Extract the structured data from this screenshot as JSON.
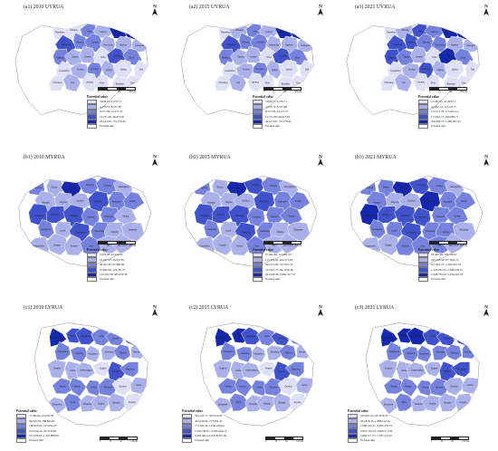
{
  "colors": {
    "class1": "#dde0f6",
    "class2": "#a9b0ea",
    "class3": "#7582dd",
    "class4": "#3f52cc",
    "class5": "#1427ad",
    "outside": "#ffffff",
    "border": "#8c8c8c"
  },
  "legend_title": "Potential value",
  "unrated_label": "Unrated unit",
  "north_label": "N",
  "scale_labels_a": [
    "0",
    "75",
    "150",
    "300 km"
  ],
  "scale_labels_b": [
    "0",
    "50",
    "100",
    "200 km"
  ],
  "scale_labels_c": [
    "0",
    "30",
    "60",
    "120 km"
  ],
  "panels": [
    {
      "id": "a1",
      "title": "(a1) 2010 UYRUA",
      "row": 0,
      "col": 0,
      "scale": "a",
      "legend": [
        "3,006.71–4,276.71",
        "4,276.76–8,557.89",
        "8,557.90–12,271.07",
        "12,271.08–40,613.05",
        "40,613.06–131,279.45"
      ]
    },
    {
      "id": "a2",
      "title": "(a2) 2015 UYRUA",
      "row": 0,
      "col": 1,
      "scale": "a",
      "legend": [
        "3,006.71–4,276.71",
        "4,276.76–8,557.89",
        "8,557.90–12,271.07",
        "12,271.08–40,613.05",
        "40,613.06–131,279.45"
      ]
    },
    {
      "id": "a3",
      "title": "(a3) 2021 UYRUA",
      "row": 0,
      "col": 2,
      "scale": "a",
      "legend": [
        "14,285.25–41,662.13",
        "41,662.14–113,511.77",
        "113,511.78–173,901.14",
        "173,901.15–266,986.71",
        "266,986.72–1,486,863.32"
      ]
    },
    {
      "id": "b1",
      "title": "(b1) 2010 MYRUA",
      "row": 1,
      "col": 0,
      "scale": "b",
      "legend": [
        "5,003.48–16,612.00",
        "16,637.67–36,957.81",
        "36,957.82–67,896.08",
        "67,896.09–124,781.57",
        "124,781.58–385,659.38"
      ]
    },
    {
      "id": "b2",
      "title": "(b2) 2015 MYRUA",
      "row": 1,
      "col": 1,
      "scale": "b",
      "legend": [
        "67,661.89–113,581.05",
        "113,581.06–202,513.83",
        "202,513.84–317,955.72",
        "317,955.73–661,639.48",
        "661,639.49–3,896,527.70"
      ]
    },
    {
      "id": "b3",
      "title": "(b3) 2021 MYRUA",
      "row": 1,
      "col": 2,
      "scale": "b",
      "legend": [
        "93,426.96–165,728.57",
        "165,728.58–677,602.74",
        "677,602.75–1,220,052.54",
        "1,220,052.55–2,398,578.41",
        "2,398,578.42–5,499,294.78"
      ]
    },
    {
      "id": "c1",
      "title": "(c1) 2010 LYRUA",
      "row": 2,
      "col": 0,
      "scale": "c",
      "legend": [
        "71,389.96–94,550.58",
        "94,550.59–188,845.91",
        "188,845.92–315,650.23",
        "315,650.24–557,939.82",
        "557,939.83–1,307,888.09"
      ]
    },
    {
      "id": "c2",
      "title": "(c2) 2015 LYRUA",
      "row": 2,
      "col": 1,
      "scale": "c",
      "legend": [
        "392,165.17–422,934.82",
        "422,934.83–773,181.42",
        "773,181.43–1,696,240.66",
        "1,696,240.67–3,285,964.13",
        "3,285,964.14–8,438,957.60"
      ]
    },
    {
      "id": "c3",
      "title": "(c3) 2021 LYRUA",
      "row": 2,
      "col": 2,
      "scale": "c",
      "legend": [
        "245,993.52–931,818.32",
        "931,818.33–1,889,212.50",
        "1,889,212.51–2,852,376.23",
        "2,852,376.24–5,866,571.56",
        "5,866,571.57–7,787,512.91"
      ]
    }
  ],
  "place_names_upper": [
    "Panzhihua",
    "Xichang",
    "Yibin",
    "Luzhou",
    "Chongqing",
    "Chengdu",
    "Mianyang",
    "Deyang",
    "Suining",
    "Nanchong",
    "Dazhou",
    "Guang'an",
    "Neijiang",
    "Zigong",
    "Leshan",
    "Ya'an",
    "Guiyang",
    "Zunyi",
    "Liupanshui",
    "Anshun",
    "Kunming",
    "Qujing",
    "Lijiang",
    "Dali",
    "Chuxiong",
    "Yuxi",
    "Lincang",
    "Pu'er",
    "Baoshan",
    "Tongren"
  ],
  "place_names_middle": [
    "Xiangyang",
    "Shiyan",
    "Wuhan",
    "Jingzhou",
    "Yichang",
    "Huanggang",
    "Xiaogan",
    "Jingmen",
    "Suizhou",
    "Xianning",
    "Huangshi",
    "Ezhou",
    "Changsha",
    "Zhuzhou",
    "Xiangtan",
    "Yueyang",
    "Changde",
    "Yiyang",
    "Hengyang",
    "Loudi",
    "Shaoyang",
    "Nanchang",
    "Jiujiang",
    "Shangrao",
    "Jingdezhen",
    "Yingtan",
    "Fuzhou",
    "Ji'an",
    "Pingxiang",
    "Yichun"
  ],
  "place_names_lower": [
    "Shanghai",
    "Nanjing",
    "Hangzhou",
    "Hefei",
    "Suzhou",
    "Wuxi",
    "Changzhou",
    "Nantong",
    "Yangzhou",
    "Zhenjiang",
    "Taizhou",
    "Yancheng",
    "Huai'an",
    "Xuzhou",
    "Lianyungang",
    "Suqian",
    "Ningbo",
    "Shaoxing",
    "Jiaxing",
    "Huzhou",
    "Jinhua",
    "Wenzhou",
    "Quzhou",
    "Lishui",
    "Zhoushan",
    "Wuhu",
    "Ma'anshan",
    "Anqing",
    "Bengbu",
    "Fuyang"
  ],
  "map_class_sequences": {
    "a1": [
      1,
      1,
      3,
      2,
      5,
      5,
      4,
      3,
      3,
      2,
      2,
      2,
      3,
      2,
      2,
      1,
      4,
      3,
      1,
      2,
      3,
      2,
      1,
      1,
      1,
      2,
      1,
      1,
      1,
      1
    ],
    "a2": [
      1,
      2,
      3,
      2,
      5,
      5,
      4,
      3,
      3,
      2,
      2,
      2,
      3,
      2,
      2,
      1,
      4,
      3,
      1,
      2,
      3,
      2,
      1,
      1,
      1,
      2,
      1,
      1,
      1,
      1
    ],
    "a3": [
      1,
      2,
      4,
      3,
      5,
      5,
      4,
      4,
      3,
      3,
      2,
      2,
      4,
      3,
      2,
      1,
      5,
      3,
      1,
      2,
      4,
      2,
      1,
      1,
      1,
      2,
      1,
      1,
      1,
      1
    ],
    "b1": [
      3,
      2,
      5,
      3,
      3,
      2,
      2,
      2,
      2,
      4,
      3,
      3,
      4,
      4,
      4,
      3,
      3,
      2,
      3,
      2,
      4,
      3,
      2,
      2,
      2,
      2,
      2,
      3,
      2,
      2
    ],
    "b2": [
      3,
      2,
      5,
      4,
      3,
      2,
      2,
      2,
      2,
      4,
      3,
      3,
      4,
      4,
      4,
      3,
      3,
      3,
      3,
      2,
      4,
      3,
      2,
      2,
      2,
      2,
      2,
      3,
      2,
      2
    ],
    "b3": [
      3,
      3,
      5,
      4,
      3,
      2,
      3,
      2,
      2,
      5,
      3,
      3,
      5,
      4,
      4,
      4,
      3,
      3,
      3,
      3,
      4,
      3,
      3,
      2,
      2,
      2,
      3,
      3,
      3,
      2
    ],
    "c1": [
      5,
      4,
      4,
      3,
      3,
      3,
      3,
      3,
      2,
      2,
      3,
      2,
      2,
      2,
      2,
      1,
      4,
      3,
      3,
      3,
      3,
      3,
      1,
      2,
      2,
      3,
      2,
      2,
      2,
      1
    ],
    "c2": [
      5,
      5,
      4,
      3,
      4,
      3,
      3,
      3,
      2,
      2,
      3,
      2,
      2,
      2,
      2,
      1,
      4,
      3,
      3,
      3,
      3,
      3,
      1,
      2,
      2,
      3,
      2,
      2,
      2,
      1
    ],
    "c3": [
      5,
      5,
      5,
      4,
      4,
      4,
      3,
      3,
      3,
      3,
      3,
      3,
      2,
      2,
      2,
      2,
      4,
      4,
      3,
      3,
      3,
      3,
      2,
      2,
      2,
      3,
      2,
      2,
      2,
      2
    ]
  }
}
